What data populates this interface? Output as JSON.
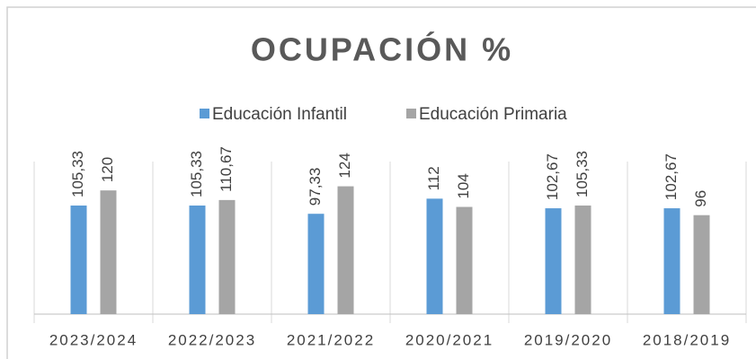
{
  "chart_data": {
    "type": "bar",
    "title": "OCUPACIÓN %",
    "categories": [
      "2023/2024",
      "2022/2023",
      "2021/2022",
      "2020/2021",
      "2019/2020",
      "2018/2019"
    ],
    "series": [
      {
        "name": "Educación Infantil",
        "color": "#5b9bd5",
        "values": [
          105.33,
          105.33,
          97.33,
          112,
          102.67,
          102.67
        ],
        "value_labels": [
          "105,33",
          "105,33",
          "97,33",
          "112",
          "102,67",
          "102,67"
        ]
      },
      {
        "name": "Educación Primaria",
        "color": "#a5a5a5",
        "values": [
          120,
          110.67,
          124,
          104,
          105.33,
          96
        ],
        "value_labels": [
          "120",
          "110,67",
          "124",
          "104",
          "105,33",
          "96"
        ]
      }
    ],
    "ylim": [
      0,
      148
    ],
    "legend": "top"
  }
}
